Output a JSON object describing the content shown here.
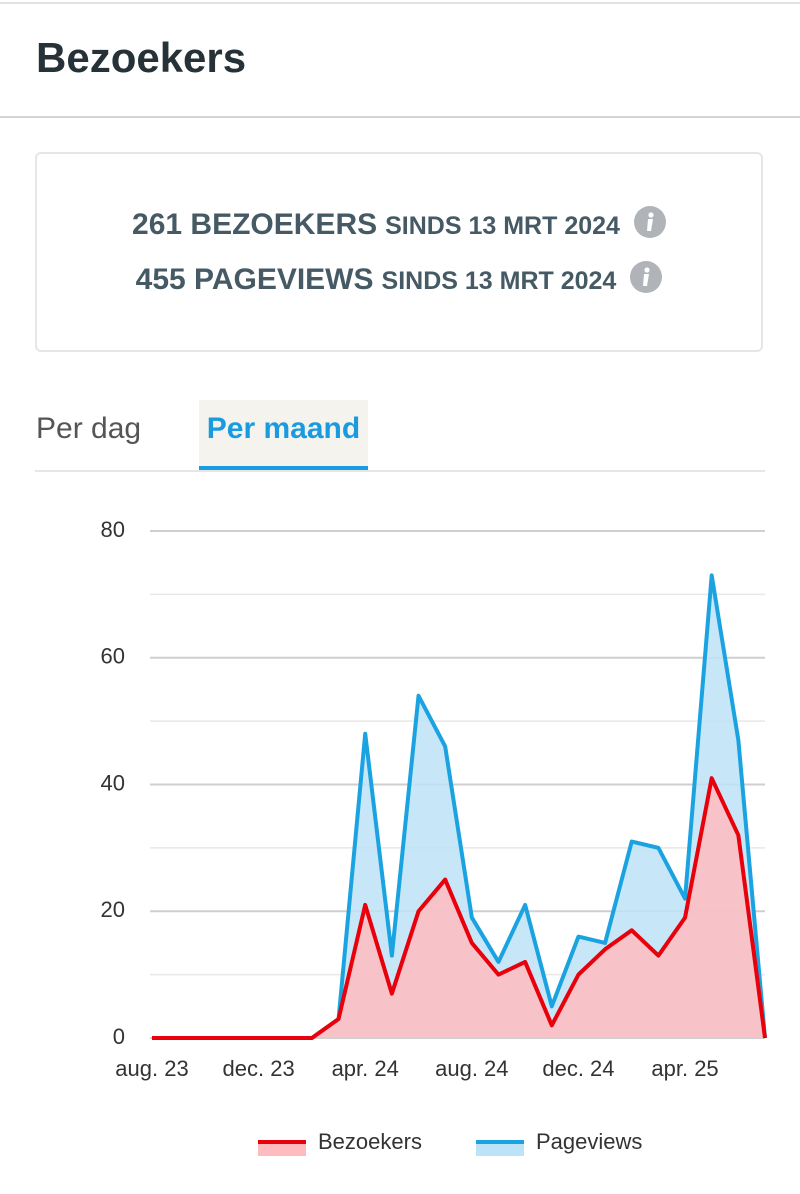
{
  "header": {
    "title": "Bezoekers"
  },
  "stats": [
    {
      "main": "261 BEZOEKERS",
      "since": "SINDS 13 MRT 2024"
    },
    {
      "main": "455 PAGEVIEWS",
      "since": "SINDS 13 MRT 2024"
    }
  ],
  "tabs": [
    {
      "label": "Per dag",
      "active": false
    },
    {
      "label": "Per maand",
      "active": true
    }
  ],
  "chart_data": {
    "type": "area",
    "categories": [
      "aug. 23",
      null,
      null,
      null,
      "dec. 23",
      null,
      null,
      null,
      "apr. 24",
      null,
      null,
      null,
      "aug. 24",
      null,
      null,
      null,
      "dec. 24",
      null,
      null,
      null,
      "apr. 25",
      null,
      null,
      null
    ],
    "series": [
      {
        "name": "Pageviews",
        "color": "#1aa3e0",
        "fill": "#bde3f8",
        "values": [
          0,
          0,
          0,
          0,
          0,
          0,
          0,
          3,
          48,
          13,
          54,
          46,
          19,
          12,
          21,
          5,
          16,
          15,
          31,
          30,
          22,
          73,
          47,
          0
        ]
      },
      {
        "name": "Bezoekers",
        "color": "#e8000b",
        "fill": "#ffbcc0",
        "values": [
          0,
          0,
          0,
          0,
          0,
          0,
          0,
          3,
          21,
          7,
          20,
          25,
          15,
          10,
          12,
          2,
          10,
          14,
          17,
          13,
          19,
          41,
          32,
          0
        ]
      }
    ],
    "ylim": [
      0,
      80
    ],
    "yticks": [
      0,
      20,
      40,
      60,
      80
    ],
    "minor_yticks": [
      10,
      30,
      50,
      70
    ],
    "grid": true,
    "legend": "bottom"
  }
}
